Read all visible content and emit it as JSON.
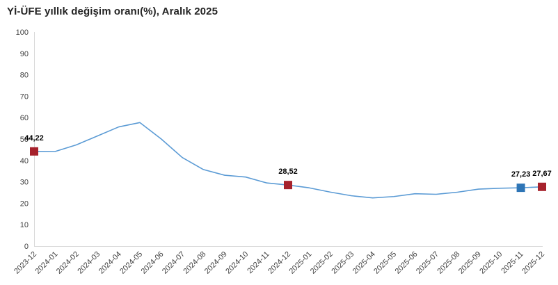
{
  "title": "Yİ-ÜFE yıllık değişim oranı(%), Aralık 2025",
  "chart_data": {
    "type": "line",
    "title": "Yİ-ÜFE yıllık değişim oranı(%), Aralık 2025",
    "categories": [
      "2023-12",
      "2024-01",
      "2024-02",
      "2024-03",
      "2024-04",
      "2024-05",
      "2024-06",
      "2024-07",
      "2024-08",
      "2024-09",
      "2024-10",
      "2024-11",
      "2024-12",
      "2025-01",
      "2025-02",
      "2025-03",
      "2025-04",
      "2025-05",
      "2025-06",
      "2025-07",
      "2025-08",
      "2025-09",
      "2025-10",
      "2025-11",
      "2025-12"
    ],
    "values": [
      44.22,
      44.2,
      47.29,
      51.47,
      55.66,
      57.68,
      50.09,
      41.37,
      35.75,
      33.09,
      32.24,
      29.47,
      28.52,
      27.2,
      25.21,
      23.5,
      22.5,
      23.13,
      24.45,
      24.19,
      25.16,
      26.59,
      27.02,
      27.23,
      27.67
    ],
    "y_ticks": [
      0,
      10,
      20,
      30,
      40,
      50,
      60,
      70,
      80,
      90,
      100
    ],
    "ylim": [
      0,
      100
    ],
    "grid": false,
    "legend": false,
    "line_color": "#5B9BD5",
    "axis_color": "#D9D9D9",
    "tick_label_color": "#404040",
    "highlighted_points": [
      {
        "category": "2023-12",
        "value": 44.22,
        "label": "44,22",
        "marker_color": "#A6222C"
      },
      {
        "category": "2024-12",
        "value": 28.52,
        "label": "28,52",
        "marker_color": "#A6222C"
      },
      {
        "category": "2025-11",
        "value": 27.23,
        "label": "27,23",
        "marker_color": "#2E75B6"
      },
      {
        "category": "2025-12",
        "value": 27.67,
        "label": "27,67",
        "marker_color": "#A6222C"
      }
    ]
  }
}
